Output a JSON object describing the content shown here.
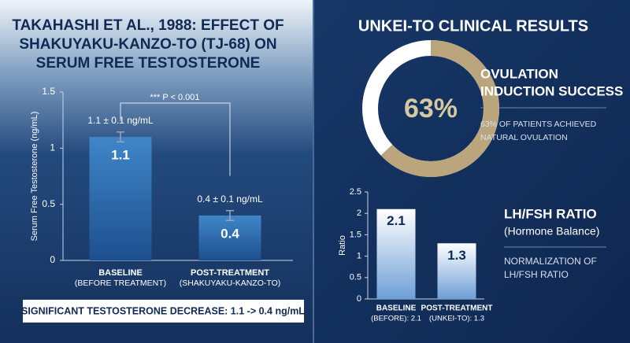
{
  "header": {
    "title": "UNKEI-TO CLINICAL RESULTS"
  },
  "chart_data": [
    {
      "type": "bar",
      "title": [
        "TAKAHASHI ET AL., 1988: EFFECT OF",
        "SHAKUYAKU-KANZO-TO (TJ-68) ON",
        "SERUM FREE TESTOSTERONE"
      ],
      "categories": [
        "BASELINE",
        "POST-TREATMENT"
      ],
      "category_sublabels": [
        "(BEFORE TREATMENT)",
        "(SHAKUYAKU-KANZO-TO)"
      ],
      "values": [
        1.1,
        0.4
      ],
      "errors": [
        0.1,
        0.1
      ],
      "value_labels": [
        "1.1 ± 0.1 ng/mL",
        "0.4 ± 0.1 ng/mL"
      ],
      "ylabel": "Serum Free Testosterone (ng/mL)",
      "ylim": [
        0,
        1.5
      ],
      "yticks": [
        0,
        0.5,
        1,
        1.5
      ],
      "color": "#2f6fb0",
      "annotation": "*** P < 0.001",
      "footer": "SIGNIFICANT TESTOSTERONE DECREASE: 1.1 -> 0.4 ng/mL"
    },
    {
      "type": "pie",
      "values": [
        63
      ],
      "value_labels": [
        "63%"
      ],
      "color": "#bba57c",
      "remainder_color": "#ffffff",
      "title": [
        "OVULATION",
        "INDUCTION SUCCESS"
      ],
      "description": [
        "63% OF PATIENTS ACHIEVED",
        "NATURAL OVULATION"
      ]
    },
    {
      "type": "bar",
      "categories": [
        "BASELINE",
        "POST-TREATMENT"
      ],
      "category_sublabels": [
        "(BEFORE): 2.1",
        "(UNKEI-TO): 1.3"
      ],
      "values": [
        2.1,
        1.3
      ],
      "ylabel": "Ratio",
      "ylim": [
        0,
        2.5
      ],
      "yticks": [
        0,
        0.5,
        1,
        1.5,
        2,
        2.5
      ],
      "color": "#ffffff",
      "title": [
        "LH/FSH RATIO"
      ],
      "subtitle": "(Hormone Balance)",
      "description": [
        "NORMALIZATION OF",
        "LH/FSH RATIO"
      ]
    }
  ]
}
